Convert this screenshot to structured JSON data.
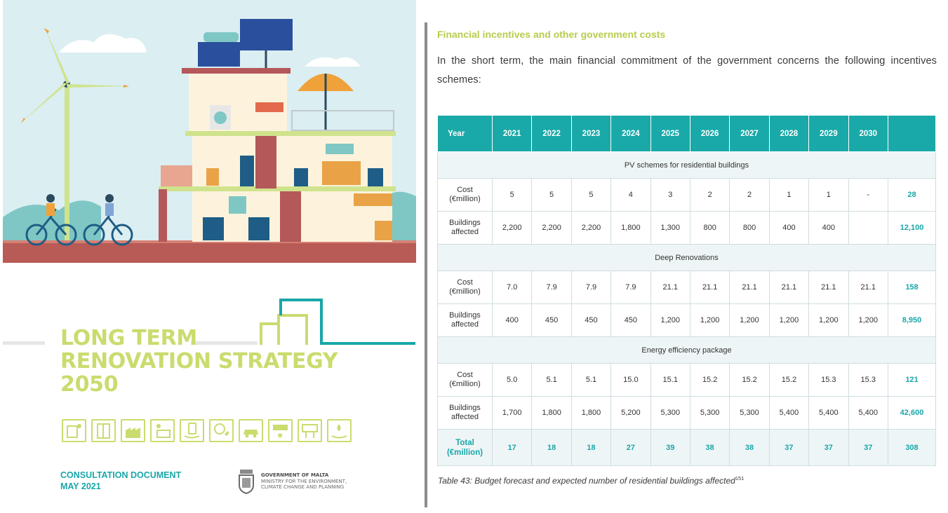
{
  "cover": {
    "title_lines": [
      "LONG TERM",
      "RENOVATION STRATEGY",
      "2050"
    ],
    "subtitle_line1": "CONSULTATION DOCUMENT",
    "subtitle_line2": "MAY 2021",
    "gov_line1": "GOVERNMENT OF MALTA",
    "gov_line2": "MINISTRY FOR THE ENVIRONMENT,",
    "gov_line3": "CLIMATE CHANGE AND PLANNING",
    "icons": [
      "window-icon",
      "door-icon",
      "factory-icon",
      "solar-panel-icon",
      "hand-phone-icon",
      "lightbulb-leaf-icon",
      "car-icon",
      "ac-unit-icon",
      "solar-heater-icon",
      "hand-water-icon"
    ],
    "accent_color": "#c9dc6e",
    "teal_color": "#1aa6a9"
  },
  "report": {
    "heading": "Financial incentives and other government costs",
    "intro": "In the short term, the main financial commitment of the government concerns the following incentives schemes:",
    "caption": "Table 43: Budget forecast and expected number of residential buildings affected",
    "caption_footnote": "151"
  },
  "table": {
    "header": [
      "Year",
      "2021",
      "2022",
      "2023",
      "2024",
      "2025",
      "2026",
      "2027",
      "2028",
      "2029",
      "2030",
      ""
    ],
    "groups": [
      {
        "title": "PV schemes for residential buildings",
        "rows": [
          {
            "label1": "Cost",
            "label2": "(€million)",
            "values": [
              "5",
              "5",
              "5",
              "4",
              "3",
              "2",
              "2",
              "1",
              "1",
              "-"
            ],
            "total": "28"
          },
          {
            "label1": "Buildings",
            "label2": "affected",
            "values": [
              "2,200",
              "2,200",
              "2,200",
              "1,800",
              "1,300",
              "800",
              "800",
              "400",
              "400",
              ""
            ],
            "total": "12,100"
          }
        ]
      },
      {
        "title": "Deep Renovations",
        "rows": [
          {
            "label1": "Cost",
            "label2": "(€million)",
            "values": [
              "7.0",
              "7.9",
              "7.9",
              "7.9",
              "21.1",
              "21.1",
              "21.1",
              "21.1",
              "21.1",
              "21.1"
            ],
            "total": "158"
          },
          {
            "label1": "Buildings",
            "label2": "affected",
            "values": [
              "400",
              "450",
              "450",
              "450",
              "1,200",
              "1,200",
              "1,200",
              "1,200",
              "1,200",
              "1,200"
            ],
            "total": "8,950"
          }
        ]
      },
      {
        "title": "Energy efficiency package",
        "rows": [
          {
            "label1": "Cost",
            "label2": "(€million)",
            "values": [
              "5.0",
              "5.1",
              "5.1",
              "15.0",
              "15.1",
              "15.2",
              "15.2",
              "15.2",
              "15.3",
              "15.3"
            ],
            "total": "121"
          },
          {
            "label1": "Buildings",
            "label2": "affected",
            "values": [
              "1,700",
              "1,800",
              "1,800",
              "5,200",
              "5,300",
              "5,300",
              "5,300",
              "5,400",
              "5,400",
              "5,400"
            ],
            "total": "42,600"
          }
        ]
      }
    ],
    "total_row": {
      "label1": "Total",
      "label2": "(€million)",
      "values": [
        "17",
        "18",
        "18",
        "27",
        "39",
        "38",
        "38",
        "37",
        "37",
        "37"
      ],
      "total": "308"
    },
    "colors": {
      "header_bg": "#19a9a8",
      "group_bg": "#eef5f6",
      "total_text": "#1aa6a9"
    }
  }
}
